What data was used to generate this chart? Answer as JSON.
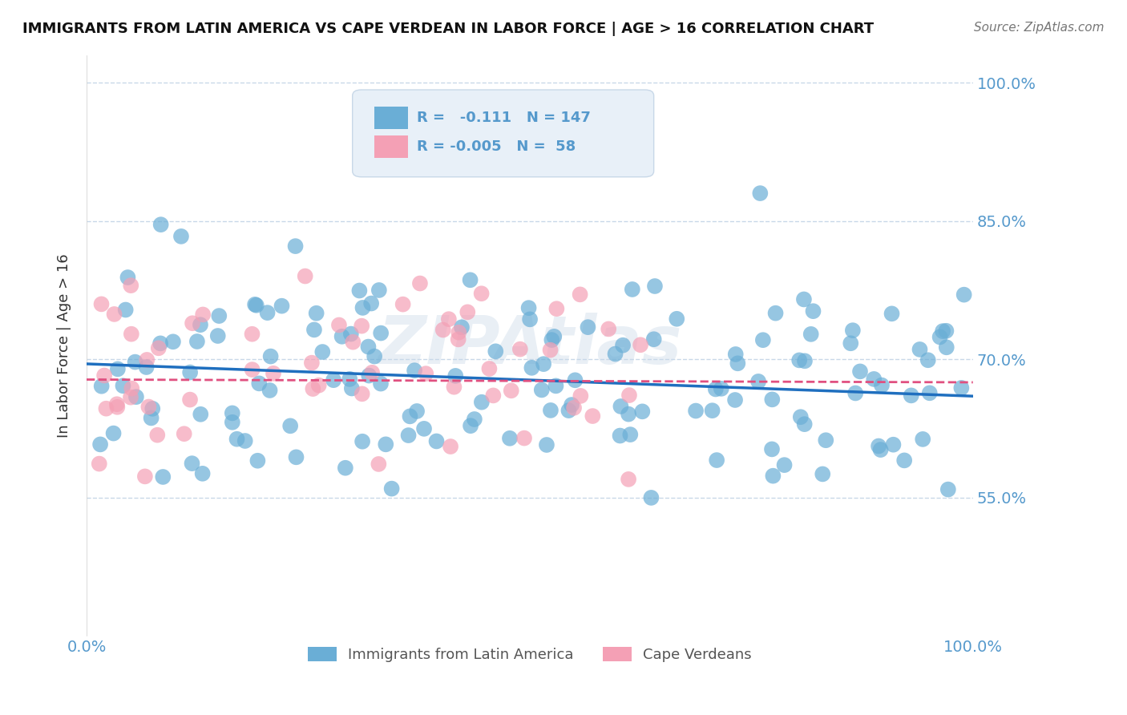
{
  "title": "IMMIGRANTS FROM LATIN AMERICA VS CAPE VERDEAN IN LABOR FORCE | AGE > 16 CORRELATION CHART",
  "source": "Source: ZipAtlas.com",
  "ylabel": "In Labor Force | Age > 16",
  "xlim": [
    0.0,
    1.0
  ],
  "ylim": [
    0.4,
    1.03
  ],
  "yticks": [
    0.55,
    0.7,
    0.85,
    1.0
  ],
  "ytick_labels": [
    "55.0%",
    "70.0%",
    "85.0%",
    "100.0%"
  ],
  "blue_R": -0.111,
  "blue_N": 147,
  "pink_R": -0.005,
  "pink_N": 58,
  "blue_color": "#6aaed6",
  "pink_color": "#f4a0b5",
  "blue_line_color": "#1f6fbf",
  "pink_line_color": "#e05080",
  "grid_color": "#c8d8e8",
  "background_color": "#ffffff",
  "tick_color": "#5599cc",
  "watermark": "ZIPAtlas",
  "watermark_color": "#c8d8e8",
  "legend_box_color": "#e8f0f8"
}
